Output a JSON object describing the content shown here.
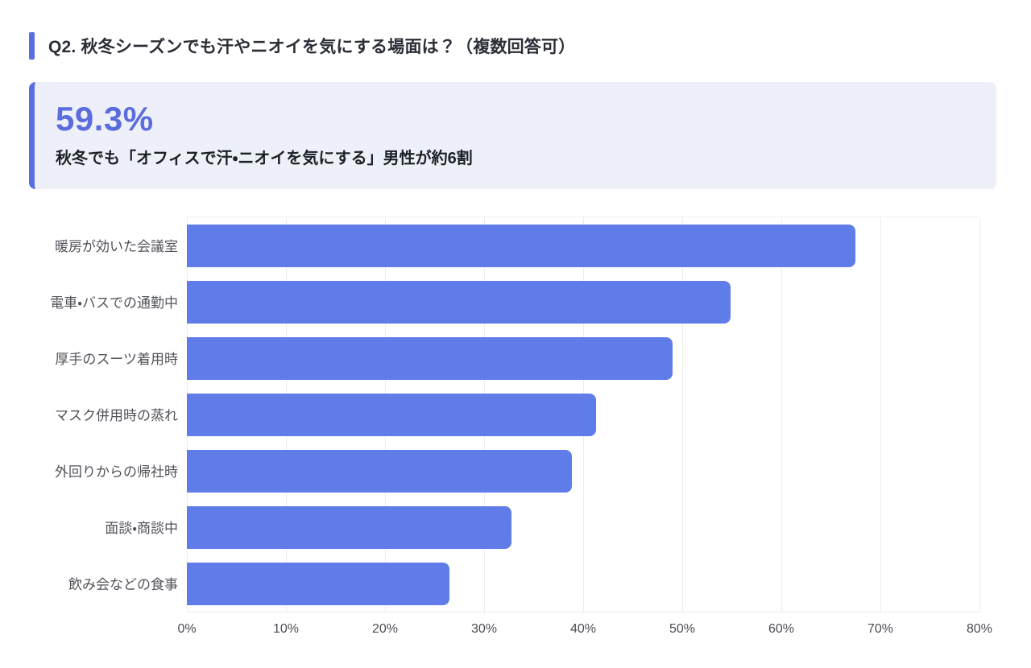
{
  "header": {
    "title": "Q2. 秋冬シーズンでも汗やニオイを気にする場面は？（複数回答可）"
  },
  "highlight": {
    "stat": "59.3%",
    "description": "秋冬でも「オフィスで汗・ニオイを気にする」男性が約6割"
  },
  "colors": {
    "accent": "#5b6ee0",
    "stat_text": "#5b6cdd",
    "highlight_bg": "#edf0f8",
    "bar": "#5f7ce8"
  },
  "chart_data": {
    "type": "bar",
    "orientation": "horizontal",
    "title": "",
    "xlabel": "",
    "ylabel": "",
    "categories": [
      "暖房が効いた会議室",
      "電車・バスでの通勤中",
      "厚手のスーツ着用時",
      "マスク併用時の蒸れ",
      "外回りからの帰社時",
      "面談・商談中",
      "飲み会などの食事"
    ],
    "values": [
      67.5,
      54.9,
      49.0,
      41.3,
      38.9,
      32.8,
      26.5
    ],
    "unit": "%",
    "xlim": [
      0,
      80
    ],
    "x_ticks": [
      "0%",
      "10%",
      "20%",
      "30%",
      "40%",
      "50%",
      "60%",
      "70%",
      "80%"
    ],
    "x_tick_values": [
      0,
      10,
      20,
      30,
      40,
      50,
      60,
      70,
      80
    ],
    "grid": true,
    "legend": false,
    "bar_color": "#5f7ce8"
  }
}
